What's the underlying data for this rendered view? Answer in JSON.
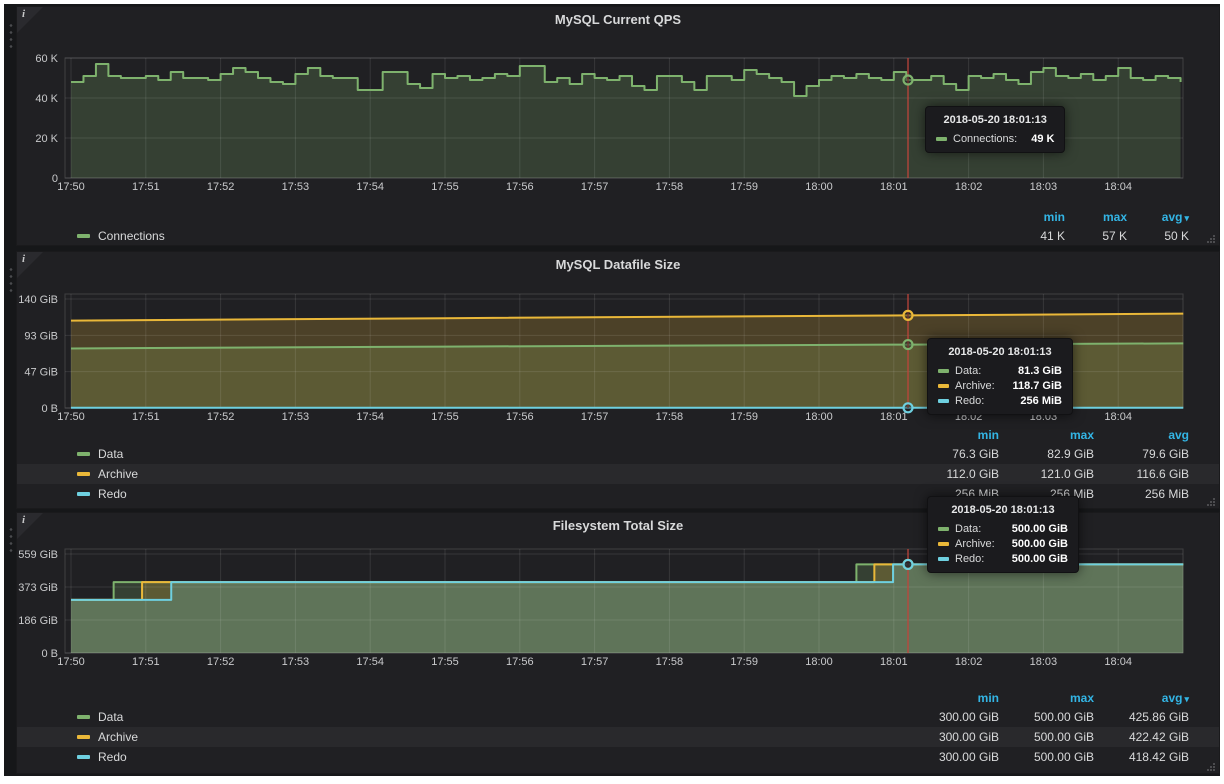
{
  "icons": {
    "info": "i",
    "sort_caret": "▾"
  },
  "colors": {
    "green": "#7EB26D",
    "yellow": "#EAB839",
    "blue": "#6ED0E0",
    "header_blue": "#33B5E5",
    "crosshair_red": "#c0453c",
    "panel_bg": "#202023",
    "dashboard_bg": "#161719"
  },
  "stats_header": {
    "min": "min",
    "max": "max",
    "avg": "avg"
  },
  "chart_data": [
    {
      "type": "line",
      "title": "MySQL Current QPS",
      "xlabel": "",
      "ylabel": "",
      "x_ticks": [
        "17:50",
        "17:51",
        "17:52",
        "17:53",
        "17:54",
        "17:55",
        "17:56",
        "17:57",
        "17:58",
        "17:59",
        "18:00",
        "18:01",
        "18:02",
        "18:03",
        "18:04"
      ],
      "ymax": 60,
      "y_ticks": [
        {
          "v": 0,
          "label": "0"
        },
        {
          "v": 20,
          "label": "20 K"
        },
        {
          "v": 40,
          "label": "40 K"
        },
        {
          "v": 60,
          "label": "60 K"
        }
      ],
      "series": [
        {
          "name": "Connections",
          "color": "#7EB26D",
          "render": "step",
          "interval_min": 0.16667,
          "crosshair_v": 49,
          "values": [
            48,
            51,
            57,
            51,
            50,
            50,
            51,
            49,
            53,
            50,
            50,
            49,
            52,
            55,
            53,
            50,
            48,
            47,
            52,
            55,
            51,
            50,
            50,
            44,
            44,
            53,
            53,
            47,
            45,
            52,
            50,
            51,
            49,
            50,
            52,
            51,
            56,
            56,
            48,
            50,
            47,
            52,
            50,
            49,
            51,
            46,
            44,
            51,
            51,
            48,
            44,
            51,
            51,
            49,
            54,
            52,
            50,
            48,
            41,
            46,
            49,
            51,
            50,
            52,
            50,
            49,
            53,
            49,
            49,
            51,
            47,
            44,
            51,
            50,
            52,
            49,
            47,
            53,
            55,
            51,
            50,
            52,
            49,
            51,
            55,
            50,
            49,
            51,
            50,
            48,
            47
          ]
        }
      ],
      "crosshair": {
        "time": "2018-05-20 18:01:13",
        "x_min": 11.19
      },
      "tooltip": {
        "time": "2018-05-20 18:01:13",
        "rows": [
          {
            "label": "Connections:",
            "value": "49 K"
          }
        ]
      },
      "legend": {
        "rows": [
          {
            "name": "Connections",
            "min": "41 K",
            "max": "57 K",
            "avg": "50 K"
          }
        ]
      }
    },
    {
      "type": "line",
      "title": "MySQL Datafile Size",
      "xlabel": "",
      "ylabel": "",
      "x_ticks": [
        "17:50",
        "17:51",
        "17:52",
        "17:53",
        "17:54",
        "17:55",
        "17:56",
        "17:57",
        "17:58",
        "17:59",
        "18:00",
        "18:01",
        "18:02",
        "18:03",
        "18:04"
      ],
      "ymax": 146.1,
      "y_ticks": [
        {
          "v": 0,
          "label": "0 B"
        },
        {
          "v": 46.6,
          "label": "47 GiB"
        },
        {
          "v": 93.1,
          "label": "93 GiB"
        },
        {
          "v": 139.7,
          "label": "140 GiB"
        }
      ],
      "series": [
        {
          "name": "Data",
          "color": "#7EB26D",
          "render": "linear",
          "crosshair_v": 81.3,
          "points": [
            [
              0,
              76.3
            ],
            [
              5,
              78.7
            ],
            [
              11.19,
              81.3
            ],
            [
              14.87,
              82.8
            ]
          ]
        },
        {
          "name": "Archive",
          "color": "#EAB839",
          "render": "linear",
          "crosshair_v": 118.7,
          "points": [
            [
              0,
              112.0
            ],
            [
              5,
              115.1
            ],
            [
              11.19,
              118.7
            ],
            [
              14.87,
              120.9
            ]
          ]
        },
        {
          "name": "Redo",
          "color": "#6ED0E0",
          "render": "linear",
          "crosshair_v": 0.25,
          "points": [
            [
              0,
              0.25
            ],
            [
              14.87,
              0.25
            ]
          ]
        }
      ],
      "crosshair": {
        "time": "2018-05-20 18:01:13",
        "x_min": 11.19
      },
      "tooltip": {
        "time": "2018-05-20 18:01:13",
        "rows": [
          {
            "label": "Data:",
            "value": "81.3 GiB"
          },
          {
            "label": "Archive:",
            "value": "118.7 GiB"
          },
          {
            "label": "Redo:",
            "value": "256 MiB"
          }
        ]
      },
      "legend": {
        "rows": [
          {
            "name": "Data",
            "min": "76.3 GiB",
            "max": "82.9 GiB",
            "avg": "79.6 GiB"
          },
          {
            "name": "Archive",
            "min": "112.0 GiB",
            "max": "121.0 GiB",
            "avg": "116.6 GiB"
          },
          {
            "name": "Redo",
            "min": "256 MiB",
            "max": "256 MiB",
            "avg": "256 MiB"
          }
        ]
      }
    },
    {
      "type": "line",
      "title": "Filesystem Total Size",
      "xlabel": "",
      "ylabel": "",
      "x_ticks": [
        "17:50",
        "17:51",
        "17:52",
        "17:53",
        "17:54",
        "17:55",
        "17:56",
        "17:57",
        "17:58",
        "17:59",
        "18:00",
        "18:01",
        "18:02",
        "18:03",
        "18:04"
      ],
      "ymax": 587,
      "y_ticks": [
        {
          "v": 0,
          "label": "0 B"
        },
        {
          "v": 186.3,
          "label": "186 GiB"
        },
        {
          "v": 372.5,
          "label": "373 GiB"
        },
        {
          "v": 558.8,
          "label": "559 GiB"
        }
      ],
      "series": [
        {
          "name": "Data",
          "color": "#7EB26D",
          "render": "linear",
          "crosshair_v": 500,
          "points": [
            [
              0,
              300
            ],
            [
              0.57,
              300
            ],
            [
              0.57,
              400
            ],
            [
              10.5,
              400
            ],
            [
              10.5,
              500
            ],
            [
              14.87,
              500
            ]
          ]
        },
        {
          "name": "Archive",
          "color": "#EAB839",
          "render": "linear",
          "crosshair_v": 500,
          "points": [
            [
              0,
              300
            ],
            [
              0.95,
              300
            ],
            [
              0.95,
              400
            ],
            [
              10.74,
              400
            ],
            [
              10.74,
              500
            ],
            [
              14.87,
              500
            ]
          ]
        },
        {
          "name": "Redo",
          "color": "#6ED0E0",
          "render": "linear",
          "crosshair_v": 500,
          "points": [
            [
              0,
              300
            ],
            [
              1.34,
              300
            ],
            [
              1.34,
              400
            ],
            [
              10.99,
              400
            ],
            [
              10.99,
              500
            ],
            [
              14.87,
              500
            ]
          ]
        }
      ],
      "crosshair": {
        "time": "2018-05-20 18:01:13",
        "x_min": 11.19
      },
      "tooltip": {
        "time": "2018-05-20 18:01:13",
        "rows": [
          {
            "label": "Data:",
            "value": "500.00 GiB"
          },
          {
            "label": "Archive:",
            "value": "500.00 GiB"
          },
          {
            "label": "Redo:",
            "value": "500.00 GiB"
          }
        ]
      },
      "legend": {
        "rows": [
          {
            "name": "Data",
            "min": "300.00 GiB",
            "max": "500.00 GiB",
            "avg": "425.86 GiB"
          },
          {
            "name": "Archive",
            "min": "300.00 GiB",
            "max": "500.00 GiB",
            "avg": "422.42 GiB"
          },
          {
            "name": "Redo",
            "min": "300.00 GiB",
            "max": "500.00 GiB",
            "avg": "418.42 GiB"
          }
        ]
      }
    }
  ]
}
